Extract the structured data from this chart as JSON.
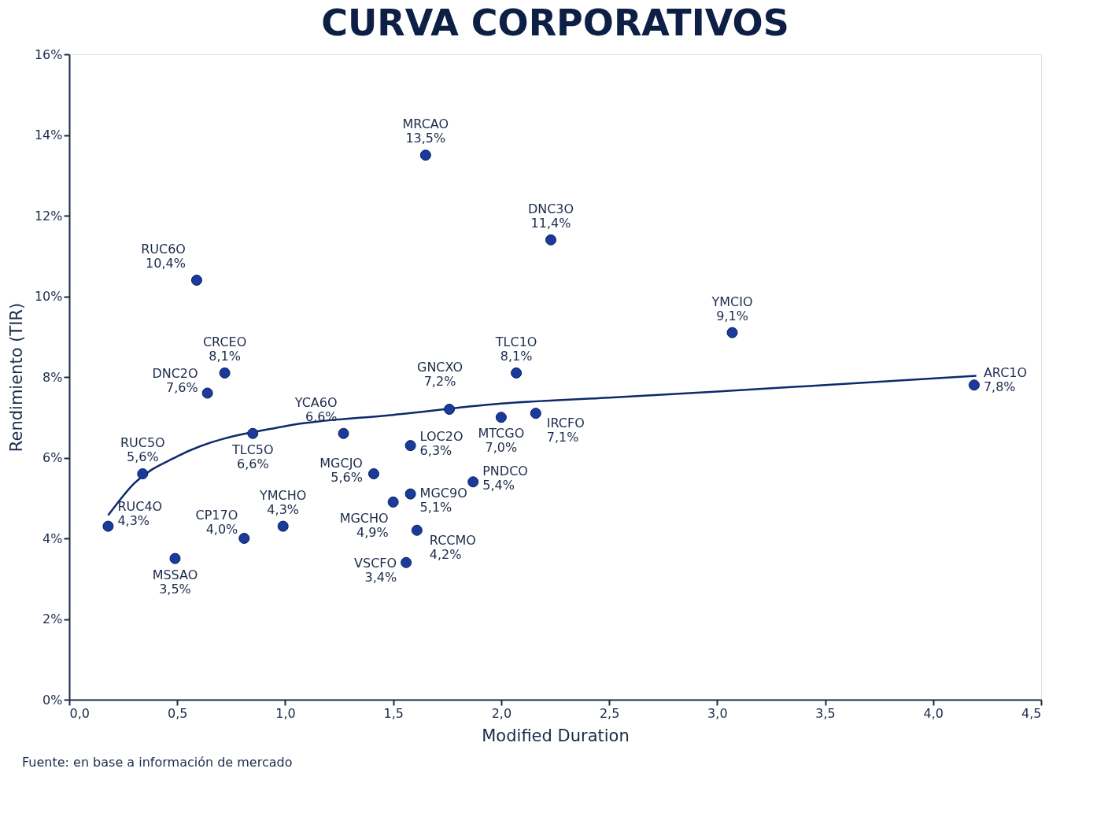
{
  "chart_data": {
    "type": "scatter",
    "title": "CURVA CORPORATIVOS",
    "xlabel": "Modified Duration",
    "ylabel": "Rendimiento (TIR)",
    "annotations": [
      "Fuente: en base a información de mercado"
    ],
    "xlim": [
      0,
      4.5
    ],
    "ylim": [
      0,
      16
    ],
    "xticks": [
      {
        "value": 0,
        "label": "0,0"
      },
      {
        "value": 0.5,
        "label": "0,5"
      },
      {
        "value": 1,
        "label": "1,0"
      },
      {
        "value": 1.5,
        "label": "1,5"
      },
      {
        "value": 2,
        "label": "2,0"
      },
      {
        "value": 2.5,
        "label": "2,5"
      },
      {
        "value": 3,
        "label": "3,0"
      },
      {
        "value": 3.5,
        "label": "3,5"
      },
      {
        "value": 4,
        "label": "4,0"
      },
      {
        "value": 4.5,
        "label": "4,5"
      }
    ],
    "yticks": [
      {
        "value": 0,
        "label": "0%"
      },
      {
        "value": 2,
        "label": "2%"
      },
      {
        "value": 4,
        "label": "4%"
      },
      {
        "value": 6,
        "label": "6%"
      },
      {
        "value": 8,
        "label": "8%"
      },
      {
        "value": 10,
        "label": "10%"
      },
      {
        "value": 12,
        "label": "12%"
      },
      {
        "value": 14,
        "label": "14%"
      },
      {
        "value": 16,
        "label": "16%"
      }
    ],
    "grid": false,
    "marker": "circle",
    "series": [
      {
        "type": "line",
        "marker": "none",
        "color": "#0d2a6b",
        "x": [
          0.18,
          0.3,
          0.5,
          1.0,
          1.5,
          2.0,
          2.5,
          3.0,
          3.5,
          4.2
        ],
        "values": [
          4.57,
          5.36,
          6.03,
          6.78,
          7.06,
          7.34,
          7.49,
          7.64,
          7.8,
          8.03
        ]
      },
      {
        "name": "MRCAO",
        "color": "#1a3a9c",
        "x": [
          1.65
        ],
        "values": [
          13.5
        ],
        "value_labels": [
          "13,5%"
        ]
      },
      {
        "name": "DNC3O",
        "color": "#1a3a9c",
        "x": [
          2.23
        ],
        "values": [
          11.4
        ],
        "value_labels": [
          "11,4%"
        ]
      },
      {
        "name": "RUC6O",
        "color": "#1a3a9c",
        "x": [
          0.59
        ],
        "values": [
          10.4
        ],
        "value_labels": [
          "10,4%"
        ]
      },
      {
        "name": "YMCIO",
        "color": "#1a3a9c",
        "x": [
          3.07
        ],
        "values": [
          9.1
        ],
        "value_labels": [
          "9,1%"
        ]
      },
      {
        "name": "CRCEO",
        "color": "#1a3a9c",
        "x": [
          0.72
        ],
        "values": [
          8.1
        ],
        "value_labels": [
          "8,1%"
        ]
      },
      {
        "name": "TLC1O",
        "color": "#1a3a9c",
        "x": [
          2.07
        ],
        "values": [
          8.1
        ],
        "value_labels": [
          "8,1%"
        ]
      },
      {
        "name": "ARC1O",
        "color": "#1a3a9c",
        "x": [
          4.19
        ],
        "values": [
          7.8
        ],
        "value_labels": [
          "7,8%"
        ]
      },
      {
        "name": "DNC2O",
        "color": "#1a3a9c",
        "x": [
          0.64
        ],
        "values": [
          7.6
        ],
        "value_labels": [
          "7,6%"
        ]
      },
      {
        "name": "GNCXO",
        "color": "#1a3a9c",
        "x": [
          1.76
        ],
        "values": [
          7.2
        ],
        "value_labels": [
          "7,2%"
        ]
      },
      {
        "name": "IRCFO",
        "color": "#1a3a9c",
        "x": [
          2.16
        ],
        "values": [
          7.1
        ],
        "value_labels": [
          "7,1%"
        ]
      },
      {
        "name": "MTCGO",
        "color": "#1a3a9c",
        "x": [
          2.0
        ],
        "values": [
          7.0
        ],
        "value_labels": [
          "7,0%"
        ]
      },
      {
        "name": "TLC5O",
        "color": "#1a3a9c",
        "x": [
          0.85
        ],
        "values": [
          6.6
        ],
        "value_labels": [
          "6,6%"
        ]
      },
      {
        "name": "YCA6O",
        "color": "#1a3a9c",
        "x": [
          1.27
        ],
        "values": [
          6.6
        ],
        "value_labels": [
          "6,6%"
        ]
      },
      {
        "name": "LOC2O",
        "color": "#1a3a9c",
        "x": [
          1.58
        ],
        "values": [
          6.3
        ],
        "value_labels": [
          "6,3%"
        ]
      },
      {
        "name": "RUC5O",
        "color": "#1a3a9c",
        "x": [
          0.34
        ],
        "values": [
          5.6
        ],
        "value_labels": [
          "5,6%"
        ]
      },
      {
        "name": "MGCJO",
        "color": "#1a3a9c",
        "x": [
          1.41
        ],
        "values": [
          5.6
        ],
        "value_labels": [
          "5,6%"
        ]
      },
      {
        "name": "PNDCO",
        "color": "#1a3a9c",
        "x": [
          1.87
        ],
        "values": [
          5.4
        ],
        "value_labels": [
          "5,4%"
        ]
      },
      {
        "name": "MGC9O",
        "color": "#1a3a9c",
        "x": [
          1.58
        ],
        "values": [
          5.1
        ],
        "value_labels": [
          "5,1%"
        ]
      },
      {
        "name": "MGCHO",
        "color": "#1a3a9c",
        "x": [
          1.5
        ],
        "values": [
          4.9
        ],
        "value_labels": [
          "4,9%"
        ]
      },
      {
        "name": "RUC4O",
        "color": "#1a3a9c",
        "x": [
          0.18
        ],
        "values": [
          4.3
        ],
        "value_labels": [
          "4,3%"
        ]
      },
      {
        "name": "YMCHO",
        "color": "#1a3a9c",
        "x": [
          0.99
        ],
        "values": [
          4.3
        ],
        "value_labels": [
          "4,3%"
        ]
      },
      {
        "name": "RCCMO",
        "color": "#1a3a9c",
        "x": [
          1.61
        ],
        "values": [
          4.2
        ],
        "value_labels": [
          "4,2%"
        ]
      },
      {
        "name": "CP17O",
        "color": "#1a3a9c",
        "x": [
          0.81
        ],
        "values": [
          4.0
        ],
        "value_labels": [
          "4,0%"
        ]
      },
      {
        "name": "MSSAO",
        "color": "#1a3a9c",
        "x": [
          0.49
        ],
        "values": [
          3.5
        ],
        "value_labels": [
          "3,5%"
        ]
      },
      {
        "name": "VSCFO",
        "color": "#1a3a9c",
        "x": [
          1.56
        ],
        "values": [
          3.4
        ],
        "value_labels": [
          "3,4%"
        ]
      }
    ]
  }
}
